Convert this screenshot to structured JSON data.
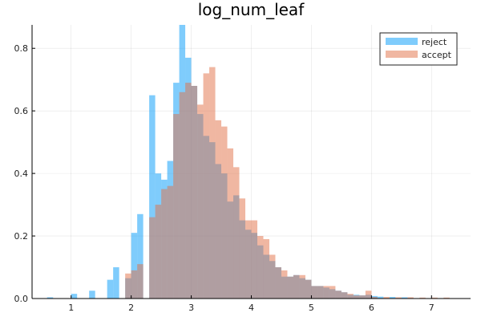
{
  "chart_data": {
    "type": "bar",
    "title": "log_num_leaf",
    "xlabel": "",
    "ylabel": "",
    "xlim": [
      0.35,
      7.65
    ],
    "ylim": [
      0,
      0.875
    ],
    "x_ticks": [
      1,
      2,
      3,
      4,
      5,
      6,
      7
    ],
    "x_tick_labels": [
      "1",
      "2",
      "3",
      "4",
      "5",
      "6",
      "7"
    ],
    "y_ticks": [
      0.0,
      0.2,
      0.4,
      0.6,
      0.8
    ],
    "y_tick_labels": [
      "0.0",
      "0.2",
      "0.4",
      "0.6",
      "0.8"
    ],
    "grid": true,
    "legend_position": "top-right",
    "bin_width": 0.1,
    "series": [
      {
        "name": "reject",
        "color": "#009af9",
        "opacity": 0.5,
        "bins": [
          {
            "x0": 0.6,
            "y": 0.004
          },
          {
            "x0": 1.0,
            "y": 0.015
          },
          {
            "x0": 1.3,
            "y": 0.025
          },
          {
            "x0": 1.6,
            "y": 0.06
          },
          {
            "x0": 1.7,
            "y": 0.1
          },
          {
            "x0": 1.9,
            "y": 0.065
          },
          {
            "x0": 2.0,
            "y": 0.21
          },
          {
            "x0": 2.1,
            "y": 0.27
          },
          {
            "x0": 2.3,
            "y": 0.65
          },
          {
            "x0": 2.4,
            "y": 0.4
          },
          {
            "x0": 2.5,
            "y": 0.38
          },
          {
            "x0": 2.6,
            "y": 0.44
          },
          {
            "x0": 2.7,
            "y": 0.69
          },
          {
            "x0": 2.8,
            "y": 0.88
          },
          {
            "x0": 2.9,
            "y": 0.77
          },
          {
            "x0": 3.0,
            "y": 0.68
          },
          {
            "x0": 3.1,
            "y": 0.59
          },
          {
            "x0": 3.2,
            "y": 0.52
          },
          {
            "x0": 3.3,
            "y": 0.5
          },
          {
            "x0": 3.4,
            "y": 0.43
          },
          {
            "x0": 3.5,
            "y": 0.4
          },
          {
            "x0": 3.6,
            "y": 0.31
          },
          {
            "x0": 3.7,
            "y": 0.33
          },
          {
            "x0": 3.8,
            "y": 0.25
          },
          {
            "x0": 3.9,
            "y": 0.22
          },
          {
            "x0": 4.0,
            "y": 0.21
          },
          {
            "x0": 4.1,
            "y": 0.17
          },
          {
            "x0": 4.2,
            "y": 0.14
          },
          {
            "x0": 4.3,
            "y": 0.12
          },
          {
            "x0": 4.4,
            "y": 0.1
          },
          {
            "x0": 4.5,
            "y": 0.07
          },
          {
            "x0": 4.6,
            "y": 0.07
          },
          {
            "x0": 4.7,
            "y": 0.075
          },
          {
            "x0": 4.8,
            "y": 0.065
          },
          {
            "x0": 4.9,
            "y": 0.06
          },
          {
            "x0": 5.0,
            "y": 0.04
          },
          {
            "x0": 5.1,
            "y": 0.04
          },
          {
            "x0": 5.2,
            "y": 0.035
          },
          {
            "x0": 5.3,
            "y": 0.03
          },
          {
            "x0": 5.4,
            "y": 0.025
          },
          {
            "x0": 5.5,
            "y": 0.02
          },
          {
            "x0": 5.6,
            "y": 0.012
          },
          {
            "x0": 5.7,
            "y": 0.012
          },
          {
            "x0": 5.8,
            "y": 0.01
          },
          {
            "x0": 5.9,
            "y": 0.012
          },
          {
            "x0": 6.0,
            "y": 0.008
          },
          {
            "x0": 6.1,
            "y": 0.006
          },
          {
            "x0": 6.3,
            "y": 0.005
          },
          {
            "x0": 6.5,
            "y": 0.004
          }
        ]
      },
      {
        "name": "accept",
        "color": "#e26f46",
        "opacity": 0.5,
        "bins": [
          {
            "x0": 1.9,
            "y": 0.08
          },
          {
            "x0": 2.0,
            "y": 0.09
          },
          {
            "x0": 2.1,
            "y": 0.11
          },
          {
            "x0": 2.3,
            "y": 0.26
          },
          {
            "x0": 2.4,
            "y": 0.3
          },
          {
            "x0": 2.5,
            "y": 0.35
          },
          {
            "x0": 2.6,
            "y": 0.36
          },
          {
            "x0": 2.7,
            "y": 0.59
          },
          {
            "x0": 2.8,
            "y": 0.66
          },
          {
            "x0": 2.9,
            "y": 0.69
          },
          {
            "x0": 3.0,
            "y": 0.68
          },
          {
            "x0": 3.1,
            "y": 0.62
          },
          {
            "x0": 3.2,
            "y": 0.72
          },
          {
            "x0": 3.3,
            "y": 0.74
          },
          {
            "x0": 3.4,
            "y": 0.57
          },
          {
            "x0": 3.5,
            "y": 0.55
          },
          {
            "x0": 3.6,
            "y": 0.48
          },
          {
            "x0": 3.7,
            "y": 0.42
          },
          {
            "x0": 3.8,
            "y": 0.32
          },
          {
            "x0": 3.9,
            "y": 0.25
          },
          {
            "x0": 4.0,
            "y": 0.25
          },
          {
            "x0": 4.1,
            "y": 0.2
          },
          {
            "x0": 4.2,
            "y": 0.19
          },
          {
            "x0": 4.3,
            "y": 0.14
          },
          {
            "x0": 4.4,
            "y": 0.1
          },
          {
            "x0": 4.5,
            "y": 0.09
          },
          {
            "x0": 4.6,
            "y": 0.07
          },
          {
            "x0": 4.7,
            "y": 0.075
          },
          {
            "x0": 4.8,
            "y": 0.075
          },
          {
            "x0": 4.9,
            "y": 0.06
          },
          {
            "x0": 5.0,
            "y": 0.04
          },
          {
            "x0": 5.1,
            "y": 0.04
          },
          {
            "x0": 5.2,
            "y": 0.04
          },
          {
            "x0": 5.3,
            "y": 0.04
          },
          {
            "x0": 5.4,
            "y": 0.025
          },
          {
            "x0": 5.5,
            "y": 0.02
          },
          {
            "x0": 5.6,
            "y": 0.015
          },
          {
            "x0": 5.7,
            "y": 0.01
          },
          {
            "x0": 5.8,
            "y": 0.01
          },
          {
            "x0": 5.9,
            "y": 0.025
          },
          {
            "x0": 6.0,
            "y": 0.005
          },
          {
            "x0": 6.2,
            "y": 0.005
          },
          {
            "x0": 6.4,
            "y": 0.004
          },
          {
            "x0": 6.6,
            "y": 0.004
          },
          {
            "x0": 6.8,
            "y": 0.003
          },
          {
            "x0": 7.0,
            "y": 0.003
          },
          {
            "x0": 7.2,
            "y": 0.003
          }
        ]
      }
    ]
  }
}
